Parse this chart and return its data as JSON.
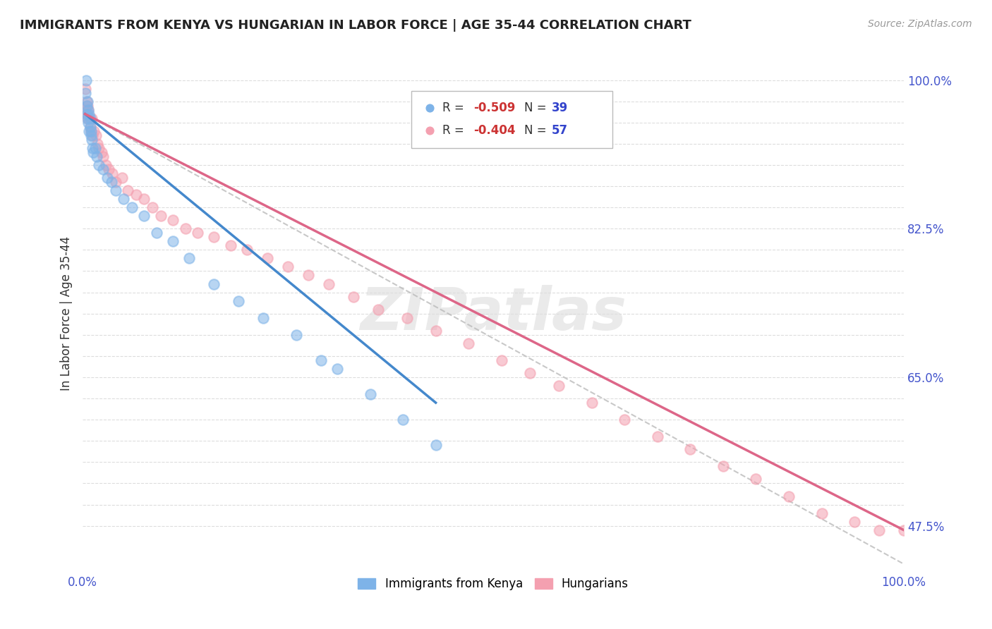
{
  "title": "IMMIGRANTS FROM KENYA VS HUNGARIAN IN LABOR FORCE | AGE 35-44 CORRELATION CHART",
  "source_text": "Source: ZipAtlas.com",
  "ylabel": "In Labor Force | Age 35-44",
  "xlim": [
    0.0,
    1.0
  ],
  "ylim": [
    0.42,
    1.03
  ],
  "background_color": "#ffffff",
  "grid_color": "#e8e8e8",
  "kenya_color": "#7eb3e8",
  "hungary_color": "#f4a0b0",
  "kenya_line_color": "#4488cc",
  "hungary_line_color": "#dd6688",
  "dashed_line_color": "#bbbbbb",
  "watermark": "ZIPatlas",
  "kenya_x": [
    0.003,
    0.004,
    0.005,
    0.005,
    0.006,
    0.006,
    0.007,
    0.007,
    0.008,
    0.008,
    0.009,
    0.009,
    0.01,
    0.01,
    0.011,
    0.012,
    0.013,
    0.015,
    0.017,
    0.02,
    0.025,
    0.03,
    0.035,
    0.04,
    0.05,
    0.06,
    0.075,
    0.09,
    0.11,
    0.13,
    0.16,
    0.19,
    0.22,
    0.26,
    0.29,
    0.31,
    0.35,
    0.39,
    0.43
  ],
  "kenya_y": [
    0.985,
    1.0,
    0.97,
    0.96,
    0.975,
    0.955,
    0.965,
    0.95,
    0.96,
    0.94,
    0.955,
    0.945,
    0.935,
    0.94,
    0.93,
    0.92,
    0.915,
    0.92,
    0.91,
    0.9,
    0.895,
    0.885,
    0.88,
    0.87,
    0.86,
    0.85,
    0.84,
    0.82,
    0.81,
    0.79,
    0.76,
    0.74,
    0.72,
    0.7,
    0.67,
    0.66,
    0.63,
    0.6,
    0.57
  ],
  "hungary_x": [
    0.003,
    0.004,
    0.005,
    0.005,
    0.006,
    0.006,
    0.007,
    0.008,
    0.009,
    0.01,
    0.011,
    0.012,
    0.014,
    0.016,
    0.018,
    0.02,
    0.023,
    0.025,
    0.028,
    0.032,
    0.036,
    0.04,
    0.048,
    0.055,
    0.065,
    0.075,
    0.085,
    0.095,
    0.11,
    0.125,
    0.14,
    0.16,
    0.18,
    0.2,
    0.225,
    0.25,
    0.275,
    0.3,
    0.33,
    0.36,
    0.395,
    0.43,
    0.47,
    0.51,
    0.545,
    0.58,
    0.62,
    0.66,
    0.7,
    0.74,
    0.78,
    0.82,
    0.86,
    0.9,
    0.94,
    0.97,
    1.0
  ],
  "hungary_y": [
    0.99,
    0.965,
    0.975,
    0.96,
    0.97,
    0.955,
    0.965,
    0.955,
    0.945,
    0.94,
    0.955,
    0.935,
    0.94,
    0.935,
    0.925,
    0.92,
    0.915,
    0.91,
    0.9,
    0.895,
    0.89,
    0.88,
    0.885,
    0.87,
    0.865,
    0.86,
    0.85,
    0.84,
    0.835,
    0.825,
    0.82,
    0.815,
    0.805,
    0.8,
    0.79,
    0.78,
    0.77,
    0.76,
    0.745,
    0.73,
    0.72,
    0.705,
    0.69,
    0.67,
    0.655,
    0.64,
    0.62,
    0.6,
    0.58,
    0.565,
    0.545,
    0.53,
    0.51,
    0.49,
    0.48,
    0.47,
    0.47
  ],
  "kenya_line_x": [
    0.003,
    0.43
  ],
  "kenya_line_y": [
    0.96,
    0.62
  ],
  "hungary_line_x": [
    0.003,
    1.0
  ],
  "hungary_line_y": [
    0.96,
    0.47
  ],
  "dashed_line_x": [
    0.003,
    1.0
  ],
  "dashed_line_y": [
    0.96,
    0.43
  ]
}
